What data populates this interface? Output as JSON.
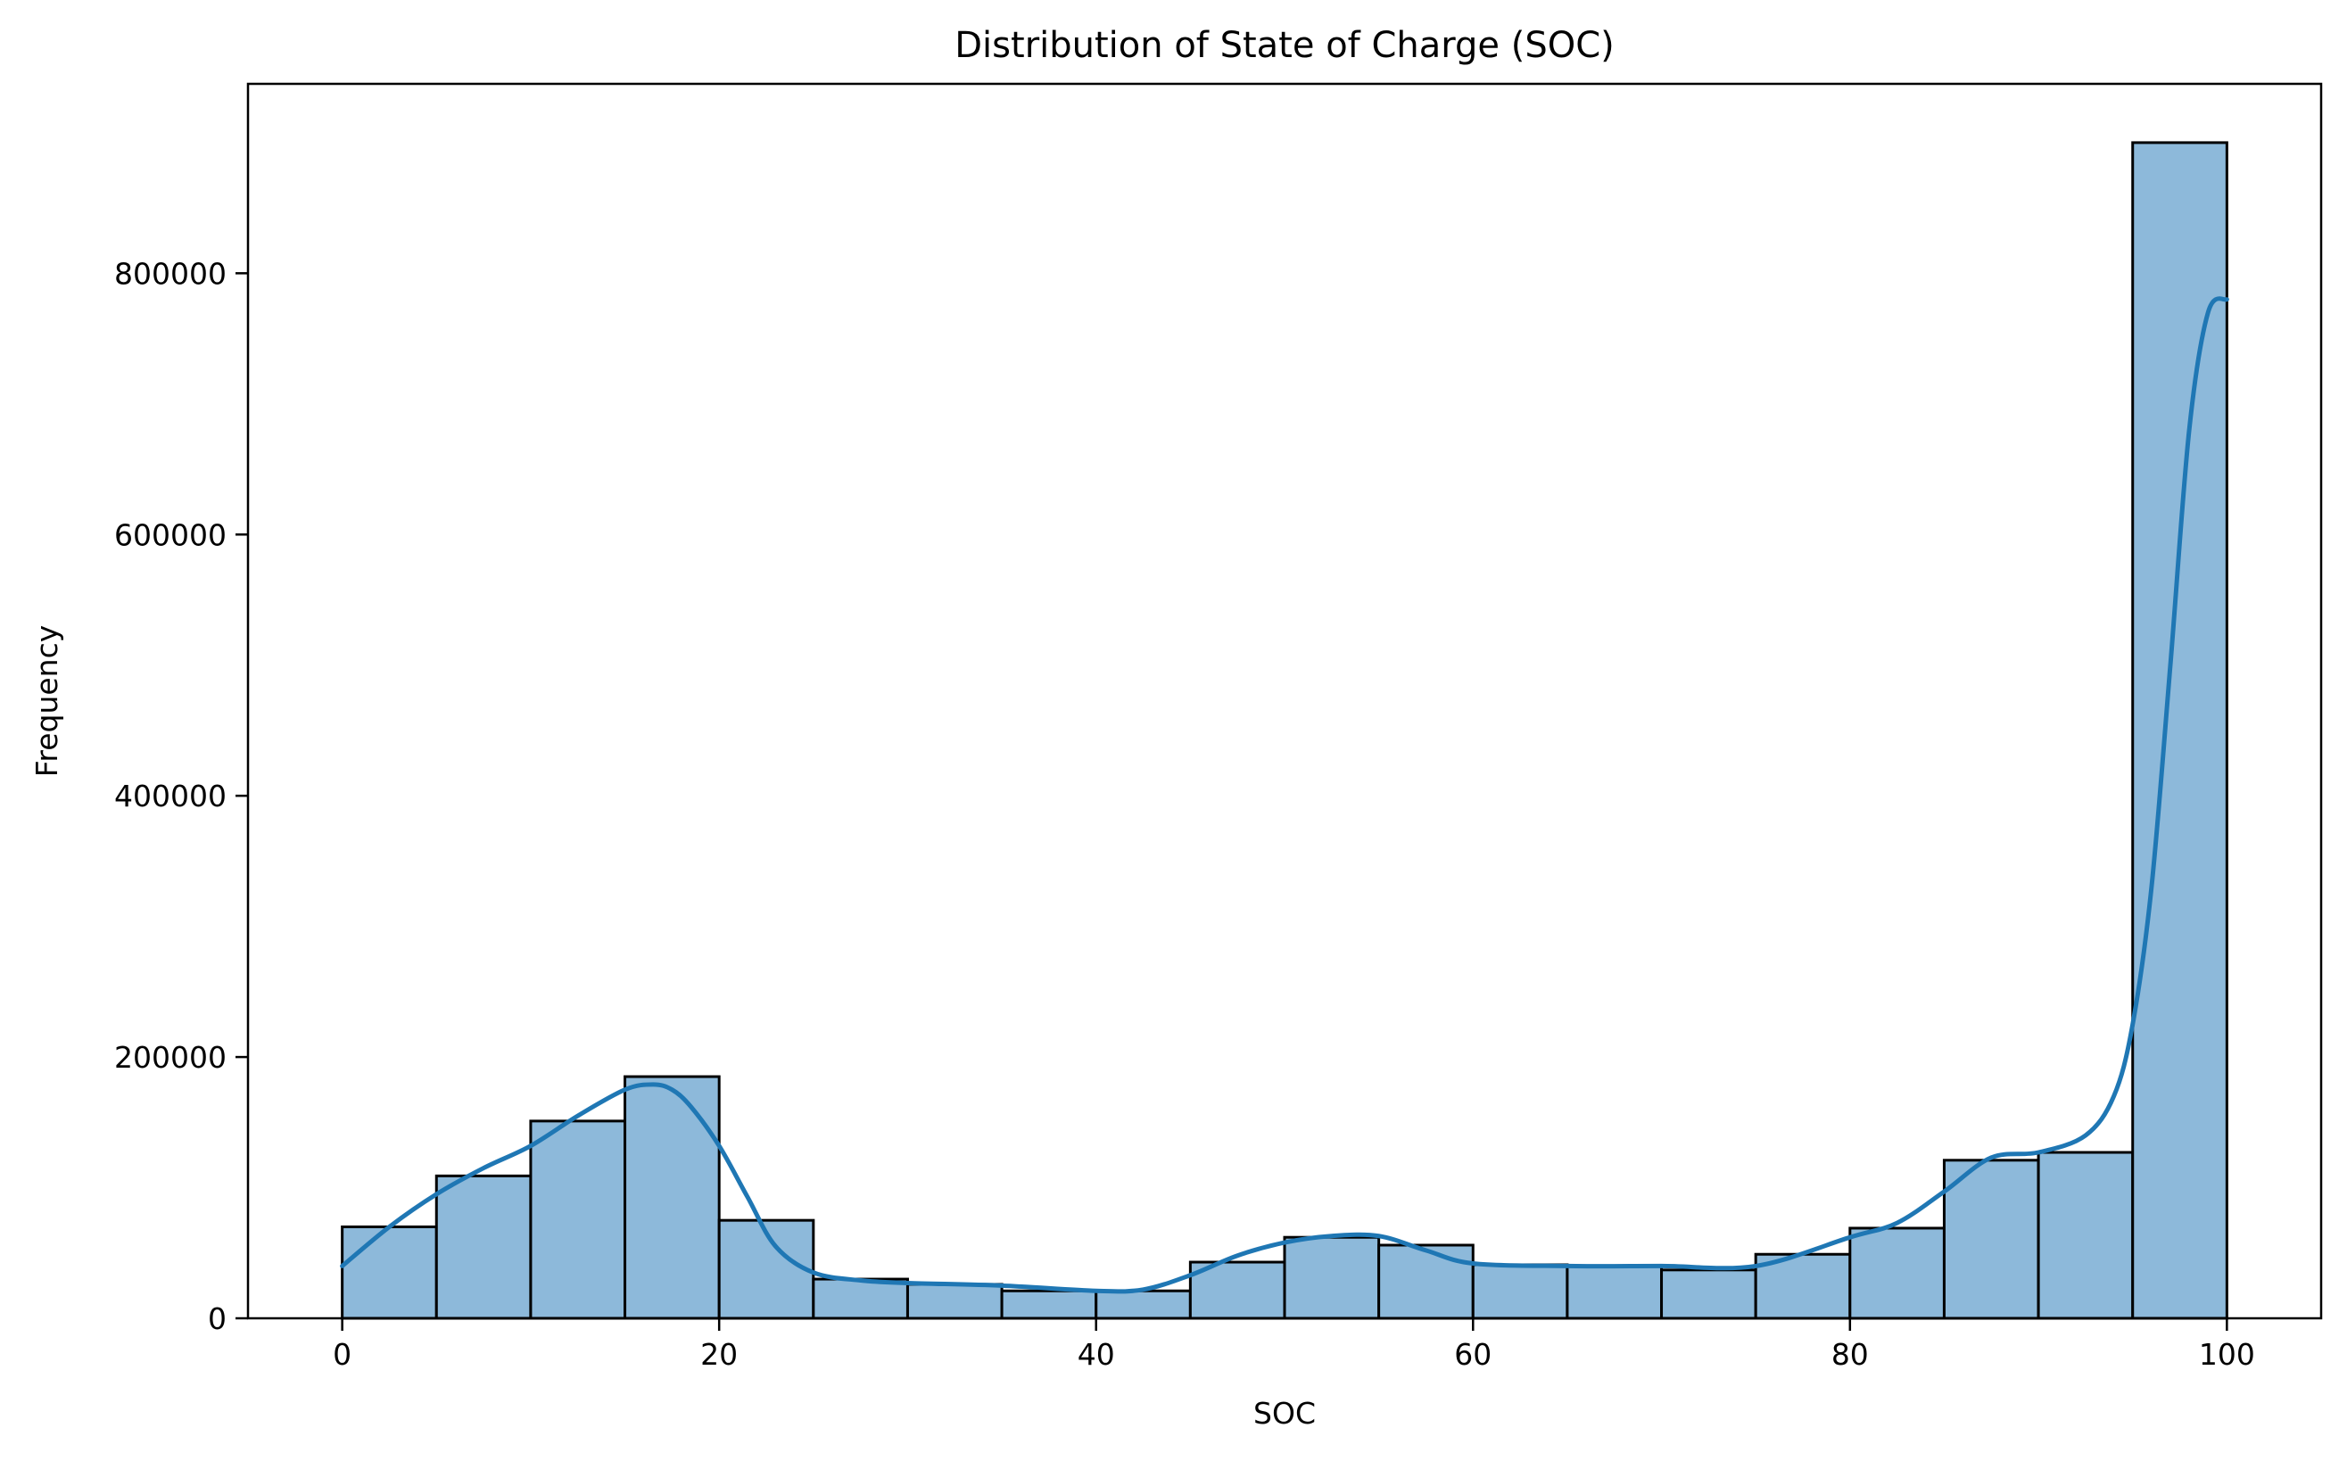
{
  "chart_data": {
    "type": "bar",
    "title": "Distribution of State of Charge (SOC)",
    "xlabel": "SOC",
    "ylabel": "Frequency",
    "xlim": [
      -5,
      105
    ],
    "ylim": [
      0,
      945000
    ],
    "x_ticks": [
      0,
      20,
      40,
      60,
      80,
      100
    ],
    "y_ticks": [
      0,
      200000,
      400000,
      600000,
      800000
    ],
    "grid": false,
    "legend": "none",
    "bin_width": 5,
    "bins": [
      {
        "start": 0,
        "end": 5,
        "value": 70000
      },
      {
        "start": 5,
        "end": 10,
        "value": 109000
      },
      {
        "start": 10,
        "end": 15,
        "value": 151000
      },
      {
        "start": 15,
        "end": 20,
        "value": 185000
      },
      {
        "start": 20,
        "end": 25,
        "value": 75000
      },
      {
        "start": 25,
        "end": 30,
        "value": 30000
      },
      {
        "start": 30,
        "end": 35,
        "value": 26000
      },
      {
        "start": 35,
        "end": 40,
        "value": 21000
      },
      {
        "start": 40,
        "end": 45,
        "value": 21000
      },
      {
        "start": 45,
        "end": 50,
        "value": 43000
      },
      {
        "start": 50,
        "end": 55,
        "value": 62000
      },
      {
        "start": 55,
        "end": 60,
        "value": 56000
      },
      {
        "start": 60,
        "end": 65,
        "value": 41000
      },
      {
        "start": 65,
        "end": 70,
        "value": 40000
      },
      {
        "start": 70,
        "end": 75,
        "value": 37000
      },
      {
        "start": 75,
        "end": 80,
        "value": 49000
      },
      {
        "start": 80,
        "end": 85,
        "value": 69000
      },
      {
        "start": 85,
        "end": 90,
        "value": 121000
      },
      {
        "start": 90,
        "end": 95,
        "value": 127000
      },
      {
        "start": 95,
        "end": 100,
        "value": 900000
      }
    ],
    "kde": {
      "x": [
        0,
        2.5,
        5,
        7.5,
        10,
        12.5,
        15,
        16.5,
        17.5,
        18.5,
        20,
        21.5,
        23,
        25,
        27.5,
        30,
        35,
        40,
        42.5,
        45,
        47.5,
        50,
        52.5,
        55,
        57.5,
        60,
        65,
        70,
        75,
        80,
        82.5,
        85,
        87.5,
        90,
        92.5,
        94,
        95,
        96,
        97,
        98,
        99,
        100
      ],
      "y": [
        40000,
        70000,
        95000,
        115000,
        132000,
        155000,
        175000,
        179000,
        175000,
        162000,
        132000,
        93000,
        55000,
        35000,
        29000,
        27000,
        25000,
        21000,
        22000,
        33000,
        48000,
        58000,
        63000,
        63000,
        52000,
        42000,
        40000,
        40000,
        40000,
        62000,
        73000,
        97000,
        123000,
        127000,
        140000,
        170000,
        225000,
        330000,
        500000,
        680000,
        770000,
        780000
      ],
      "color": "#1f77b4"
    },
    "bar_fill": "#8db9da",
    "bar_edge": "#000000"
  }
}
